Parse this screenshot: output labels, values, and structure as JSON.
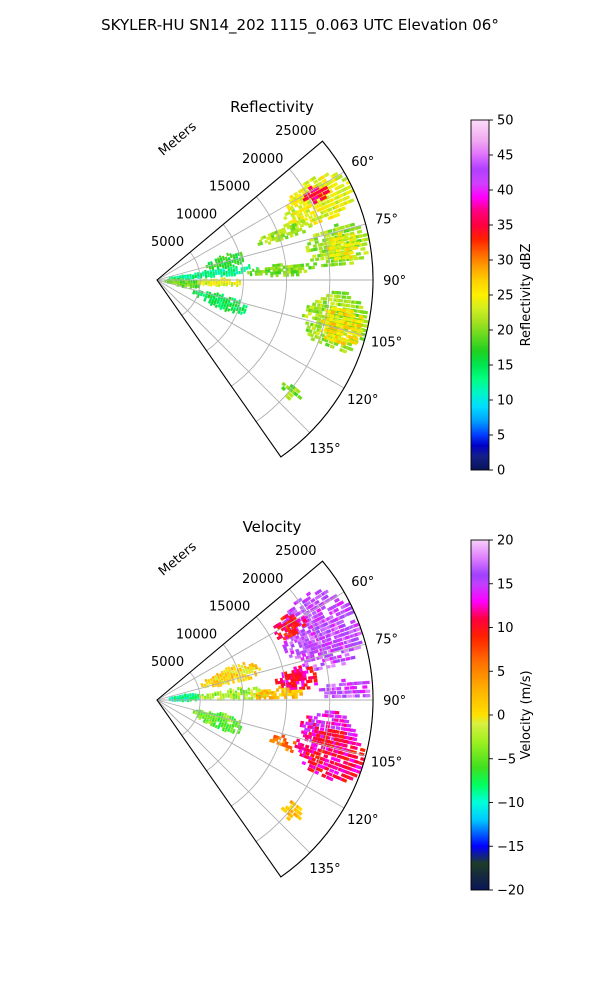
{
  "figure_title": "SKYLER-HU  SN14_202  1115_0.063 UTC Elevation 06°",
  "chart_data": [
    {
      "type": "heatmap",
      "title": "Reflectivity",
      "projection": "polar-sector",
      "radial_label": "Meters",
      "radial_ticks": [
        5000,
        10000,
        15000,
        20000,
        25000
      ],
      "radial_range": [
        0,
        25000
      ],
      "azimuth_range_deg": [
        50,
        145
      ],
      "azimuth_ticks": [
        "60°",
        "75°",
        "90°",
        "105°",
        "120°",
        "135°"
      ],
      "grid": true,
      "colorbar": {
        "label": "Reflectivity dBZ",
        "range": [
          0,
          50
        ],
        "ticks": [
          "0",
          "5",
          "10",
          "15",
          "20",
          "25",
          "30",
          "35",
          "40",
          "45",
          "50"
        ],
        "colors": [
          "#0a1458",
          "#14208a",
          "#0000c8",
          "#003cff",
          "#00a0ff",
          "#00dcff",
          "#00f5c8",
          "#00ff80",
          "#00e650",
          "#20d020",
          "#60d820",
          "#a0e020",
          "#d0ee20",
          "#fff000",
          "#ffd200",
          "#ffa000",
          "#ff6400",
          "#ff2000",
          "#ff0040",
          "#ff0080",
          "#ff00ff",
          "#d040ff",
          "#b040ff",
          "#e070ff",
          "#f0a8f0",
          "#fbdcf8"
        ],
        "stops": [
          0,
          2,
          3.5,
          5,
          7,
          9,
          11,
          13,
          15,
          17,
          19,
          21,
          23,
          25,
          27,
          29,
          31,
          33,
          35,
          37,
          39,
          41,
          43,
          45,
          47,
          50
        ]
      },
      "echo_regions": [
        {
          "az_min": 57,
          "az_max": 71,
          "r_min": 16500,
          "r_max": 25000,
          "value": 24
        },
        {
          "az_min": 59,
          "az_max": 64,
          "r_min": 19500,
          "r_max": 22500,
          "value": 36
        },
        {
          "az_min": 67,
          "az_max": 73,
          "r_min": 12500,
          "r_max": 19000,
          "value": 21
        },
        {
          "az_min": 73,
          "az_max": 86,
          "r_min": 17500,
          "r_max": 25000,
          "value": 21
        },
        {
          "az_min": 76,
          "az_max": 84,
          "r_min": 20000,
          "r_max": 24000,
          "value": 25
        },
        {
          "az_min": 70,
          "az_max": 80,
          "r_min": 6000,
          "r_max": 10500,
          "value": 17
        },
        {
          "az_min": 80,
          "az_max": 87,
          "r_min": 1500,
          "r_max": 12000,
          "value": 13
        },
        {
          "az_min": 83,
          "az_max": 88,
          "r_min": 10000,
          "r_max": 19000,
          "value": 20
        },
        {
          "az_min": 88,
          "az_max": 104,
          "r_min": 1000,
          "r_max": 5000,
          "value": 19
        },
        {
          "az_min": 89,
          "az_max": 96,
          "r_min": 4500,
          "r_max": 10000,
          "value": 24
        },
        {
          "az_min": 94,
          "az_max": 112,
          "r_min": 17500,
          "r_max": 25000,
          "value": 21
        },
        {
          "az_min": 98,
          "az_max": 110,
          "r_min": 19500,
          "r_max": 24500,
          "value": 26
        },
        {
          "az_min": 103,
          "az_max": 114,
          "r_min": 4500,
          "r_max": 11000,
          "value": 15
        },
        {
          "az_min": 127,
          "az_max": 132,
          "r_min": 19000,
          "r_max": 21500,
          "value": 20
        }
      ]
    },
    {
      "type": "heatmap",
      "title": "Velocity",
      "projection": "polar-sector",
      "radial_label": "Meters",
      "radial_ticks": [
        5000,
        10000,
        15000,
        20000,
        25000
      ],
      "radial_range": [
        0,
        25000
      ],
      "azimuth_range_deg": [
        50,
        145
      ],
      "azimuth_ticks": [
        "60°",
        "75°",
        "90°",
        "105°",
        "120°",
        "135°"
      ],
      "grid": true,
      "colorbar": {
        "label": "Velocity (m/s)",
        "range": [
          -20,
          20
        ],
        "ticks": [
          "−20",
          "−15",
          "−10",
          "−5",
          "0",
          "5",
          "10",
          "15",
          "20"
        ],
        "colors": [
          "#0a1458",
          "#1e3c28",
          "#0000ff",
          "#00c8ff",
          "#00ffdc",
          "#00ff60",
          "#40e020",
          "#a0f020",
          "#d8f040",
          "#ffe000",
          "#ffb000",
          "#ff7000",
          "#ff2000",
          "#ff0040",
          "#ff00ff",
          "#c040ff",
          "#a040ff",
          "#e080ff",
          "#f8d0f8"
        ],
        "stops": [
          -20,
          -17,
          -15,
          -12,
          -10,
          -8,
          -6,
          -3,
          -1,
          0,
          3,
          6,
          9,
          11,
          13,
          15,
          16,
          18,
          20
        ]
      },
      "echo_regions": [
        {
          "az_min": 55,
          "az_max": 80,
          "r_min": 16000,
          "r_max": 25000,
          "value": 16
        },
        {
          "az_min": 57,
          "az_max": 65,
          "r_min": 15500,
          "r_max": 19500,
          "value": 10
        },
        {
          "az_min": 77,
          "az_max": 86,
          "r_min": 14000,
          "r_max": 19000,
          "value": 11
        },
        {
          "az_min": 84,
          "az_max": 90,
          "r_min": 19000,
          "r_max": 25000,
          "value": 16
        },
        {
          "az_min": 66,
          "az_max": 78,
          "r_min": 5500,
          "r_max": 12500,
          "value": 1
        },
        {
          "az_min": 80,
          "az_max": 92,
          "r_min": 1500,
          "r_max": 5000,
          "value": -9
        },
        {
          "az_min": 82,
          "az_max": 90,
          "r_min": 5000,
          "r_max": 13000,
          "value": -3
        },
        {
          "az_min": 84,
          "az_max": 90,
          "r_min": 11000,
          "r_max": 17000,
          "value": 2
        },
        {
          "az_min": 94,
          "az_max": 106,
          "r_min": 17000,
          "r_max": 23500,
          "value": 13
        },
        {
          "az_min": 100,
          "az_max": 115,
          "r_min": 17000,
          "r_max": 25000,
          "value": 11
        },
        {
          "az_min": 102,
          "az_max": 115,
          "r_min": 4500,
          "r_max": 10500,
          "value": -5
        },
        {
          "az_min": 106,
          "az_max": 112,
          "r_min": 14000,
          "r_max": 17000,
          "value": 6
        },
        {
          "az_min": 126,
          "az_max": 132,
          "r_min": 19000,
          "r_max": 21500,
          "value": 2
        }
      ]
    }
  ]
}
